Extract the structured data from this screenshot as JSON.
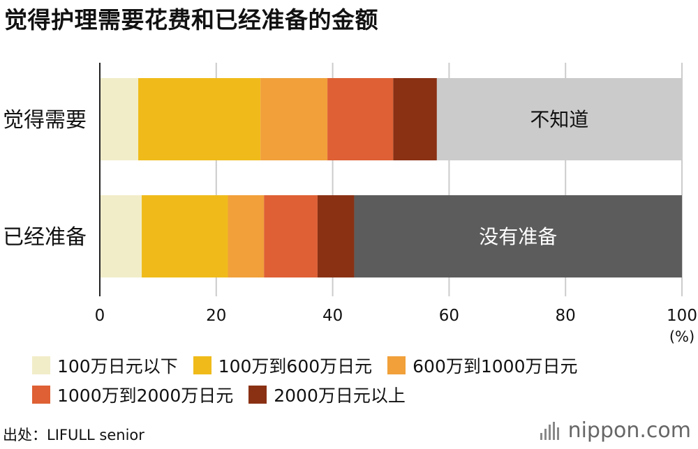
{
  "title": "觉得护理需要花费和已经准备的金额",
  "colors": {
    "under_100": "#f1edc9",
    "100_600": "#f0bb1a",
    "600_1000": "#f1a03a",
    "1000_2000": "#de6034",
    "over_2000": "#8a3114",
    "unknown": "#cbcbcb",
    "not_prepared": "#5c5c5c",
    "grid": "#cccccc",
    "axis": "#222222"
  },
  "chart_data": {
    "type": "bar",
    "orientation": "horizontal",
    "stacked": true,
    "categories": [
      "觉得需要",
      "已经准备"
    ],
    "series": [
      {
        "name": "100万日元以下",
        "color": "#f1edc9",
        "values": [
          6.6,
          7.2
        ]
      },
      {
        "name": "100万到600万日元",
        "color": "#f0bb1a",
        "values": [
          21.0,
          14.8
        ]
      },
      {
        "name": "600万到1000万日元",
        "color": "#f1a03a",
        "values": [
          11.5,
          6.2
        ]
      },
      {
        "name": "1000万到2000万日元",
        "color": "#de6034",
        "values": [
          11.3,
          9.2
        ]
      },
      {
        "name": "2000万日元以上",
        "color": "#8a3114",
        "values": [
          7.5,
          6.3
        ]
      },
      {
        "color": "#cbcbcb",
        "values": [
          42.1,
          null
        ],
        "inline_label": "不知道",
        "label_color": "#111111"
      },
      {
        "color": "#5c5c5c",
        "values": [
          null,
          56.3
        ],
        "inline_label": "没有准备",
        "label_color": "#ffffff"
      }
    ],
    "x_ticks": [
      0,
      20,
      40,
      60,
      80,
      100
    ],
    "x_unit": "(%)",
    "xlim": [
      0,
      100
    ],
    "grid": true,
    "legend_position": "bottom"
  },
  "source": "出处：LIFULL senior",
  "brand": "nippon.com"
}
